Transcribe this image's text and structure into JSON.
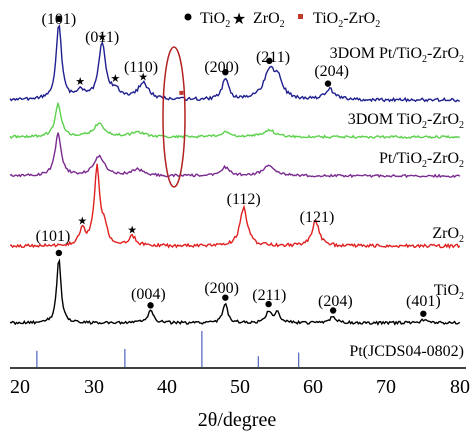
{
  "chart_data": {
    "type": "line",
    "xlabel": "2θ/degree",
    "ylabel": "",
    "xlim": [
      20,
      80
    ],
    "x_ticks": [
      20,
      30,
      40,
      50,
      60,
      70,
      80
    ],
    "legend": {
      "placement": "top-right",
      "entries": [
        {
          "label": "TiO2",
          "marker": "dot",
          "color": "#000000"
        },
        {
          "label": "ZrO2",
          "marker": "star",
          "color": "#000000"
        },
        {
          "label": "TiO2-ZrO2",
          "marker": "square",
          "color": "#c0392b"
        }
      ]
    },
    "series": [
      {
        "name": "3DOM Pt/TiO2-ZrO2",
        "color": "#1f1f8f",
        "peaks": [
          {
            "x": 25.3,
            "h": 1.0,
            "w": 0.45
          },
          {
            "x": 28.2,
            "h": 0.12,
            "w": 0.6
          },
          {
            "x": 31.2,
            "h": 0.75,
            "w": 0.6
          },
          {
            "x": 33.0,
            "h": 0.12,
            "w": 0.6
          },
          {
            "x": 36.8,
            "h": 0.22,
            "w": 0.9
          },
          {
            "x": 48.0,
            "h": 0.28,
            "w": 0.5
          },
          {
            "x": 54.0,
            "h": 0.38,
            "w": 0.9
          },
          {
            "x": 55.2,
            "h": 0.25,
            "w": 0.7
          },
          {
            "x": 62.2,
            "h": 0.14,
            "w": 0.8
          }
        ],
        "peak_labels": [
          {
            "text": "(101)",
            "x": 25.3
          },
          {
            "text": "(011)",
            "x": 31.2
          },
          {
            "text": "(110)",
            "x": 36.5
          },
          {
            "text": "(200)",
            "x": 47.5
          },
          {
            "text": "(211)",
            "x": 54.5
          },
          {
            "text": "(204)",
            "x": 62.5
          }
        ],
        "markers": [
          {
            "type": "dot",
            "x": 25.3
          },
          {
            "type": "star",
            "x": 28.2
          },
          {
            "type": "star",
            "x": 31.2
          },
          {
            "type": "star",
            "x": 33.0
          },
          {
            "type": "star",
            "x": 36.8
          },
          {
            "type": "dot",
            "x": 48.0
          },
          {
            "type": "dot",
            "x": 54.0
          },
          {
            "type": "dot",
            "x": 62.0
          },
          {
            "type": "square",
            "x": 42.0
          }
        ]
      },
      {
        "name": "3DOM TiO2-ZrO2",
        "color": "#5cd14c",
        "peaks": [
          {
            "x": 25.2,
            "h": 1.0,
            "w": 0.5
          },
          {
            "x": 30.8,
            "h": 0.4,
            "w": 0.9
          },
          {
            "x": 36.0,
            "h": 0.15,
            "w": 1.0
          },
          {
            "x": 48.0,
            "h": 0.15,
            "w": 0.7
          },
          {
            "x": 54.0,
            "h": 0.2,
            "w": 1.0
          }
        ],
        "peak_labels": [],
        "markers": []
      },
      {
        "name": "Pt/TiO2-ZrO2",
        "color": "#7a2b8f",
        "peaks": [
          {
            "x": 25.2,
            "h": 1.0,
            "w": 0.5
          },
          {
            "x": 30.8,
            "h": 0.45,
            "w": 0.9
          },
          {
            "x": 36.0,
            "h": 0.15,
            "w": 1.0
          },
          {
            "x": 48.0,
            "h": 0.2,
            "w": 0.7
          },
          {
            "x": 54.0,
            "h": 0.25,
            "w": 1.0
          }
        ],
        "peak_labels": [],
        "markers": []
      },
      {
        "name": "ZrO2",
        "color": "#e02020",
        "peaks": [
          {
            "x": 28.5,
            "h": 0.2,
            "w": 0.5
          },
          {
            "x": 30.5,
            "h": 1.0,
            "w": 0.45
          },
          {
            "x": 31.5,
            "h": 0.2,
            "w": 0.5
          },
          {
            "x": 35.3,
            "h": 0.12,
            "w": 0.6
          },
          {
            "x": 50.5,
            "h": 0.5,
            "w": 0.6
          },
          {
            "x": 60.3,
            "h": 0.32,
            "w": 0.6
          }
        ],
        "peak_labels": [
          {
            "text": "(101)",
            "x": 24.5
          },
          {
            "text": "(112)",
            "x": 50.5
          },
          {
            "text": "(121)",
            "x": 60.5
          }
        ],
        "markers": [
          {
            "type": "star",
            "x": 28.5
          },
          {
            "type": "star",
            "x": 35.3
          }
        ]
      },
      {
        "name": "TiO2",
        "color": "#000000",
        "peaks": [
          {
            "x": 25.3,
            "h": 1.0,
            "w": 0.35
          },
          {
            "x": 37.8,
            "h": 0.18,
            "w": 0.5
          },
          {
            "x": 48.0,
            "h": 0.3,
            "w": 0.4
          },
          {
            "x": 53.9,
            "h": 0.18,
            "w": 0.45
          },
          {
            "x": 55.1,
            "h": 0.16,
            "w": 0.45
          },
          {
            "x": 62.7,
            "h": 0.1,
            "w": 0.5
          },
          {
            "x": 75.0,
            "h": 0.05,
            "w": 0.5
          }
        ],
        "peak_labels": [
          {
            "text": "(004)",
            "x": 37.5
          },
          {
            "text": "(200)",
            "x": 47.5
          },
          {
            "text": "(211)",
            "x": 54.0
          },
          {
            "text": "(204)",
            "x": 63.0
          },
          {
            "text": "(401)",
            "x": 75.0
          }
        ],
        "markers": [
          {
            "type": "dot",
            "x": 25.3
          },
          {
            "type": "dot",
            "x": 37.8
          },
          {
            "type": "dot",
            "x": 48.0
          },
          {
            "type": "dot",
            "x": 53.9
          },
          {
            "type": "dot",
            "x": 62.7
          },
          {
            "type": "dot",
            "x": 75.0
          }
        ]
      }
    ],
    "reference": {
      "name": "Pt(JCDS04-0802)",
      "color": "#5a6fc4",
      "lines": [
        {
          "x": 22.3,
          "h": 0.45
        },
        {
          "x": 34.3,
          "h": 0.5
        },
        {
          "x": 44.8,
          "h": 1.0
        },
        {
          "x": 52.5,
          "h": 0.3
        },
        {
          "x": 58.0,
          "h": 0.4
        }
      ]
    },
    "highlight_ellipse": {
      "x": 42.0,
      "color": "#b22222"
    }
  }
}
